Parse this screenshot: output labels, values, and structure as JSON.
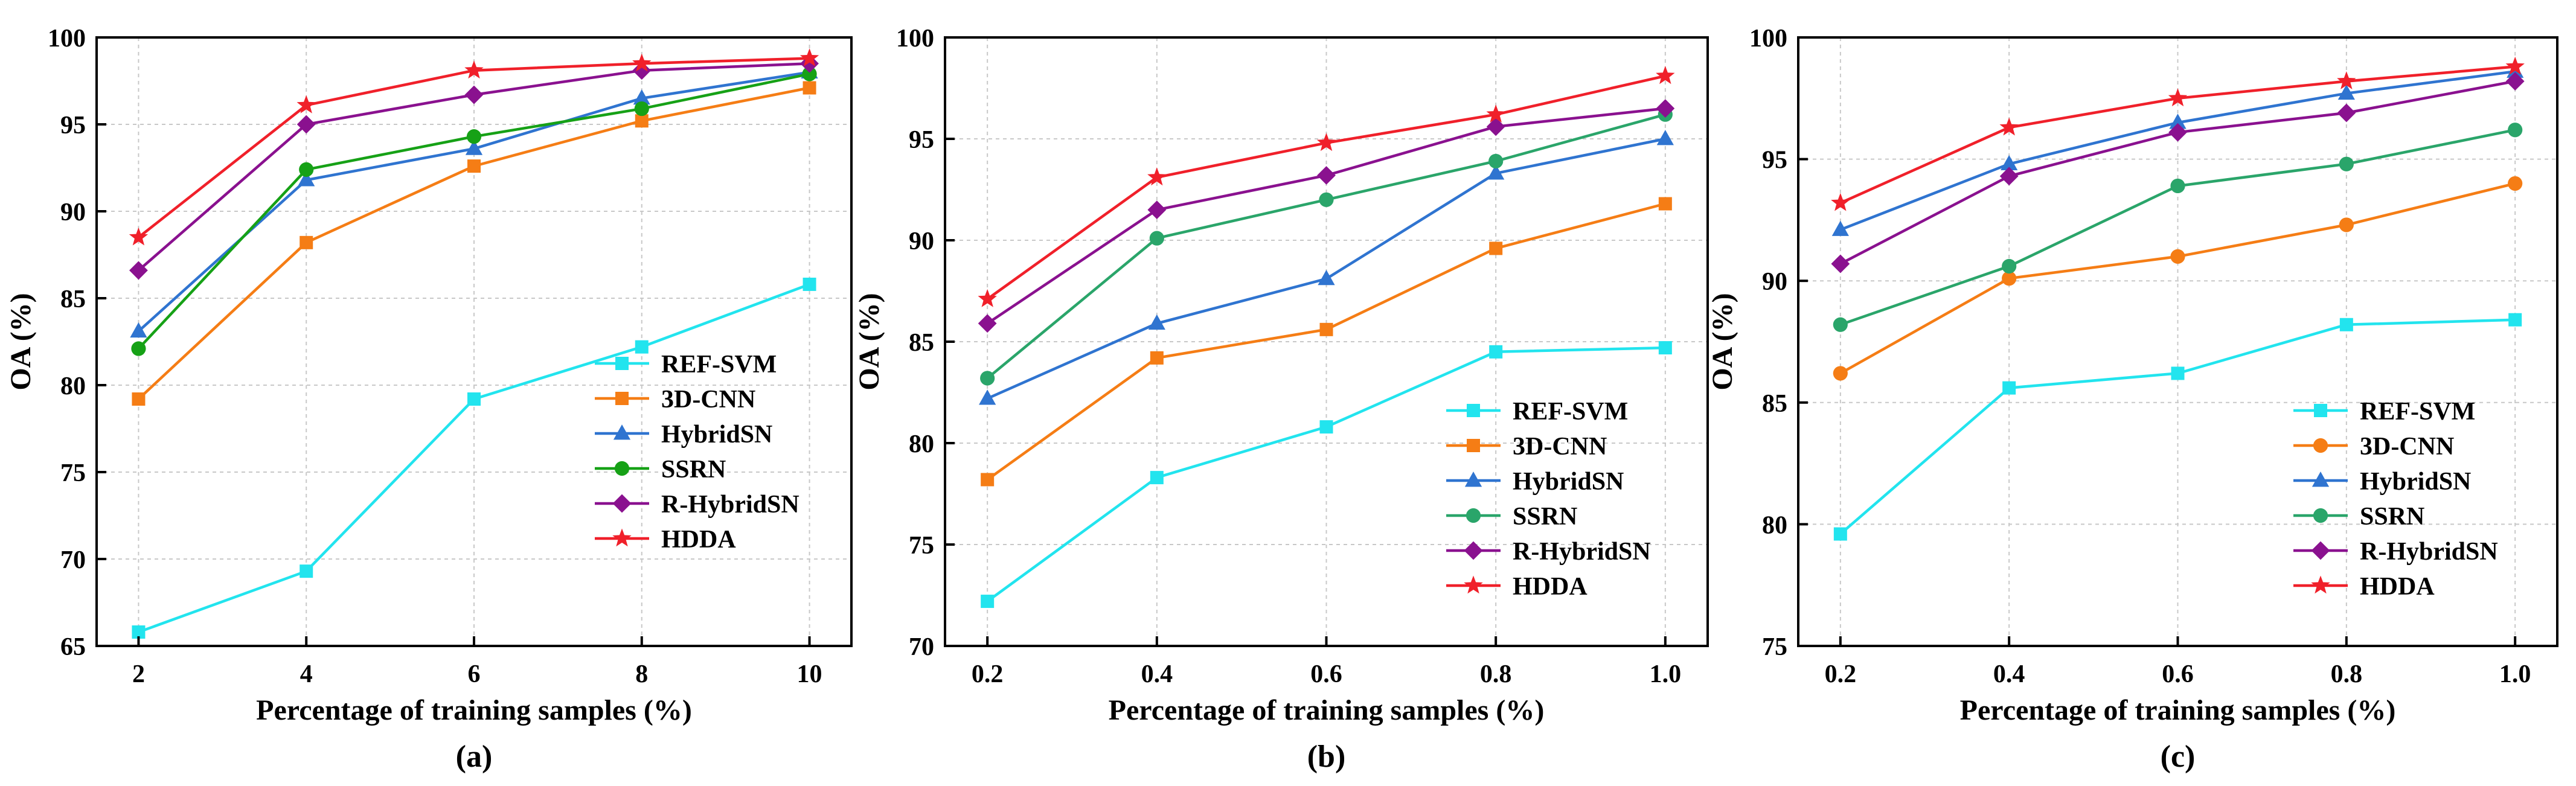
{
  "chart_data": [
    {
      "type": "line",
      "panel_label": "(a)",
      "xlabel": "Percentage of training samples (%)",
      "ylabel": "OA (%)",
      "x": [
        2,
        4,
        6,
        8,
        10
      ],
      "x_tick_labels": [
        "2",
        "4",
        "6",
        "8",
        "10"
      ],
      "xlim": [
        1.5,
        10.5
      ],
      "ylim": [
        65,
        100
      ],
      "y_ticks": [
        65,
        70,
        75,
        80,
        85,
        90,
        95,
        100
      ],
      "grid": true,
      "legend_position": "bottom-right",
      "series": [
        {
          "name": "REF-SVM",
          "color": "#22e4ee",
          "marker": "square",
          "values": [
            65.8,
            69.3,
            79.2,
            82.2,
            85.8
          ]
        },
        {
          "name": "3D-CNN",
          "color": "#f57d15",
          "marker": "square",
          "values": [
            79.2,
            88.2,
            92.6,
            95.2,
            97.1
          ]
        },
        {
          "name": "HybridSN",
          "color": "#2f74d0",
          "marker": "triangle",
          "values": [
            83.1,
            91.8,
            93.6,
            96.5,
            98.0
          ]
        },
        {
          "name": "SSRN",
          "color": "#16a116",
          "marker": "circle",
          "values": [
            82.1,
            92.4,
            94.3,
            95.9,
            97.9
          ]
        },
        {
          "name": "R-HybridSN",
          "color": "#8a118f",
          "marker": "diamond",
          "values": [
            86.6,
            95.0,
            96.7,
            98.1,
            98.5
          ]
        },
        {
          "name": "HDDA",
          "color": "#f0202a",
          "marker": "star",
          "values": [
            88.5,
            96.1,
            98.1,
            98.5,
            98.8
          ]
        }
      ]
    },
    {
      "type": "line",
      "panel_label": "(b)",
      "xlabel": "Percentage of training samples (%)",
      "ylabel": "OA (%)",
      "x": [
        0.2,
        0.4,
        0.6,
        0.8,
        1.0
      ],
      "x_tick_labels": [
        "0.2",
        "0.4",
        "0.6",
        "0.8",
        "1.0"
      ],
      "xlim": [
        0.15,
        1.05
      ],
      "ylim": [
        70,
        100
      ],
      "y_ticks": [
        70,
        75,
        80,
        85,
        90,
        95,
        100
      ],
      "grid": true,
      "legend_position": "bottom-right",
      "series": [
        {
          "name": "REF-SVM",
          "color": "#22e4ee",
          "marker": "square",
          "values": [
            72.2,
            78.3,
            80.8,
            84.5,
            84.7
          ]
        },
        {
          "name": "3D-CNN",
          "color": "#f57d15",
          "marker": "square",
          "values": [
            78.2,
            84.2,
            85.6,
            89.6,
            91.8
          ]
        },
        {
          "name": "HybridSN",
          "color": "#2f74d0",
          "marker": "triangle",
          "values": [
            82.2,
            85.9,
            88.1,
            93.3,
            95.0
          ]
        },
        {
          "name": "SSRN",
          "color": "#2aa56a",
          "marker": "circle",
          "values": [
            83.2,
            90.1,
            92.0,
            93.9,
            96.2
          ]
        },
        {
          "name": "R-HybridSN",
          "color": "#8a118f",
          "marker": "diamond",
          "values": [
            85.9,
            91.5,
            93.2,
            95.6,
            96.5
          ]
        },
        {
          "name": "HDDA",
          "color": "#f0202a",
          "marker": "star",
          "values": [
            87.1,
            93.1,
            94.8,
            96.2,
            98.1
          ]
        }
      ]
    },
    {
      "type": "line",
      "panel_label": "(c)",
      "xlabel": "Percentage of training samples (%)",
      "ylabel": "OA (%)",
      "x": [
        0.2,
        0.4,
        0.6,
        0.8,
        1.0
      ],
      "x_tick_labels": [
        "0.2",
        "0.4",
        "0.6",
        "0.8",
        "1.0"
      ],
      "xlim": [
        0.15,
        1.05
      ],
      "ylim": [
        75,
        100
      ],
      "y_ticks": [
        75,
        80,
        85,
        90,
        95,
        100
      ],
      "grid": true,
      "legend_position": "bottom-right",
      "series": [
        {
          "name": "REF-SVM",
          "color": "#22e4ee",
          "marker": "square",
          "values": [
            79.6,
            85.6,
            86.2,
            88.2,
            88.4
          ]
        },
        {
          "name": "3D-CNN",
          "color": "#f57d15",
          "marker": "circle",
          "values": [
            86.2,
            90.1,
            91.0,
            92.3,
            94.0
          ]
        },
        {
          "name": "HybridSN",
          "color": "#2f74d0",
          "marker": "triangle",
          "values": [
            92.1,
            94.8,
            96.5,
            97.7,
            98.6
          ]
        },
        {
          "name": "SSRN",
          "color": "#2aa56a",
          "marker": "circle",
          "values": [
            88.2,
            90.6,
            93.9,
            94.8,
            96.2
          ]
        },
        {
          "name": "R-HybridSN",
          "color": "#8a118f",
          "marker": "diamond",
          "values": [
            90.7,
            94.3,
            96.1,
            96.9,
            98.2
          ]
        },
        {
          "name": "HDDA",
          "color": "#f0202a",
          "marker": "star",
          "values": [
            93.2,
            96.3,
            97.5,
            98.2,
            98.8
          ]
        }
      ]
    }
  ]
}
